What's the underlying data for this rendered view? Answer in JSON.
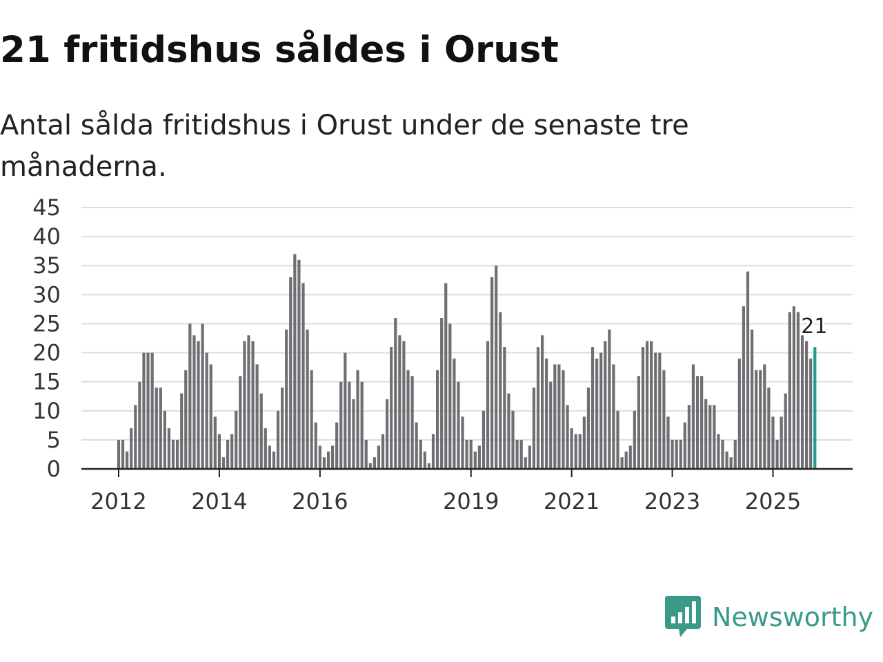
{
  "header": {
    "title": "21 fritidshus såldes i Orust",
    "subtitle": "Antal sålda fritidshus i Orust under de senaste tre månaderna."
  },
  "brand": {
    "name": "Newsworthy",
    "icon": "newsworthy-bar-chart-icon",
    "color": "#3a9a8a"
  },
  "colors": {
    "bar": "#6f6e73",
    "highlight": "#1a9e92",
    "grid": "#dcdcdc",
    "axis": "#222222",
    "text": "#333333"
  },
  "chart_data": {
    "type": "bar",
    "title": "21 fritidshus såldes i Orust",
    "subtitle": "Antal sålda fritidshus i Orust under de senaste tre månaderna.",
    "xlabel": "",
    "ylabel": "",
    "ylim": [
      0,
      45
    ],
    "yticks": [
      0,
      5,
      10,
      15,
      20,
      25,
      30,
      35,
      40,
      45
    ],
    "grid": true,
    "start": "2012-01",
    "xticks": [
      {
        "label": "2012",
        "index": 0
      },
      {
        "label": "2014",
        "index": 24
      },
      {
        "label": "2016",
        "index": 48
      },
      {
        "label": "2019",
        "index": 84
      },
      {
        "label": "2021",
        "index": 108
      },
      {
        "label": "2023",
        "index": 132
      },
      {
        "label": "2025",
        "index": 156
      }
    ],
    "values": [
      5,
      5,
      3,
      7,
      11,
      15,
      20,
      20,
      20,
      14,
      14,
      10,
      7,
      5,
      5,
      13,
      17,
      25,
      23,
      22,
      25,
      20,
      18,
      9,
      6,
      2,
      5,
      6,
      10,
      16,
      22,
      23,
      22,
      18,
      13,
      7,
      4,
      3,
      10,
      14,
      24,
      33,
      37,
      36,
      32,
      24,
      17,
      8,
      4,
      2,
      3,
      4,
      8,
      15,
      20,
      15,
      12,
      17,
      15,
      5,
      1,
      2,
      4,
      6,
      12,
      21,
      26,
      23,
      22,
      17,
      16,
      8,
      5,
      3,
      1,
      6,
      17,
      26,
      32,
      25,
      19,
      15,
      9,
      5,
      5,
      3,
      4,
      10,
      22,
      33,
      35,
      27,
      21,
      13,
      10,
      5,
      5,
      2,
      4,
      14,
      21,
      23,
      19,
      15,
      18,
      18,
      17,
      11,
      7,
      6,
      6,
      9,
      14,
      21,
      19,
      20,
      22,
      24,
      18,
      10,
      2,
      3,
      4,
      10,
      16,
      21,
      22,
      22,
      20,
      20,
      17,
      9,
      5,
      5,
      5,
      8,
      11,
      18,
      16,
      16,
      12,
      11,
      11,
      6,
      5,
      3,
      2,
      5,
      19,
      28,
      34,
      24,
      17,
      17,
      18,
      14,
      9,
      5,
      9,
      13,
      27,
      28,
      27,
      23,
      22,
      19,
      21
    ],
    "highlight_index": 166,
    "annotation": {
      "label": "21",
      "index": 166,
      "value": 21
    }
  }
}
